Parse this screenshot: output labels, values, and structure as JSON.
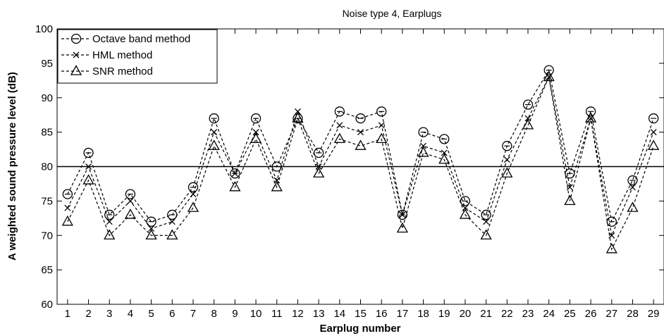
{
  "chart_data": {
    "type": "line",
    "title": "Noise type 4, Earplugs",
    "xlabel": "Earplug number",
    "ylabel": "A weighted sound pressure level (dB)",
    "x": [
      1,
      2,
      3,
      4,
      5,
      6,
      7,
      8,
      9,
      10,
      11,
      12,
      13,
      14,
      15,
      16,
      17,
      18,
      19,
      20,
      21,
      22,
      23,
      24,
      25,
      26,
      27,
      28,
      29
    ],
    "xlim": [
      0.5,
      29.5
    ],
    "ylim": [
      60,
      100
    ],
    "yticks": [
      60,
      65,
      70,
      75,
      80,
      85,
      90,
      95,
      100
    ],
    "reference_line": 80,
    "grid": false,
    "legend_position": "top-left",
    "series": [
      {
        "name": "Octave band method",
        "marker": "circle",
        "values": [
          76,
          82,
          73,
          76,
          72,
          73,
          77,
          87,
          79,
          87,
          80,
          87,
          82,
          88,
          87,
          88,
          73,
          85,
          84,
          75,
          73,
          83,
          89,
          94,
          79,
          88,
          72,
          78,
          87
        ]
      },
      {
        "name": "HML method",
        "marker": "x",
        "values": [
          74,
          80,
          72,
          75,
          71,
          72,
          76,
          85,
          79,
          85,
          78,
          88,
          80,
          86,
          85,
          86,
          73,
          83,
          82,
          74,
          72,
          81,
          87,
          93,
          77,
          87,
          70,
          77,
          85
        ]
      },
      {
        "name": "SNR method",
        "marker": "triangle",
        "values": [
          72,
          78,
          70,
          73,
          70,
          70,
          74,
          83,
          77,
          84,
          77,
          87,
          79,
          84,
          83,
          84,
          71,
          82,
          81,
          73,
          70,
          79,
          86,
          93,
          75,
          87,
          68,
          74,
          83
        ]
      }
    ]
  }
}
